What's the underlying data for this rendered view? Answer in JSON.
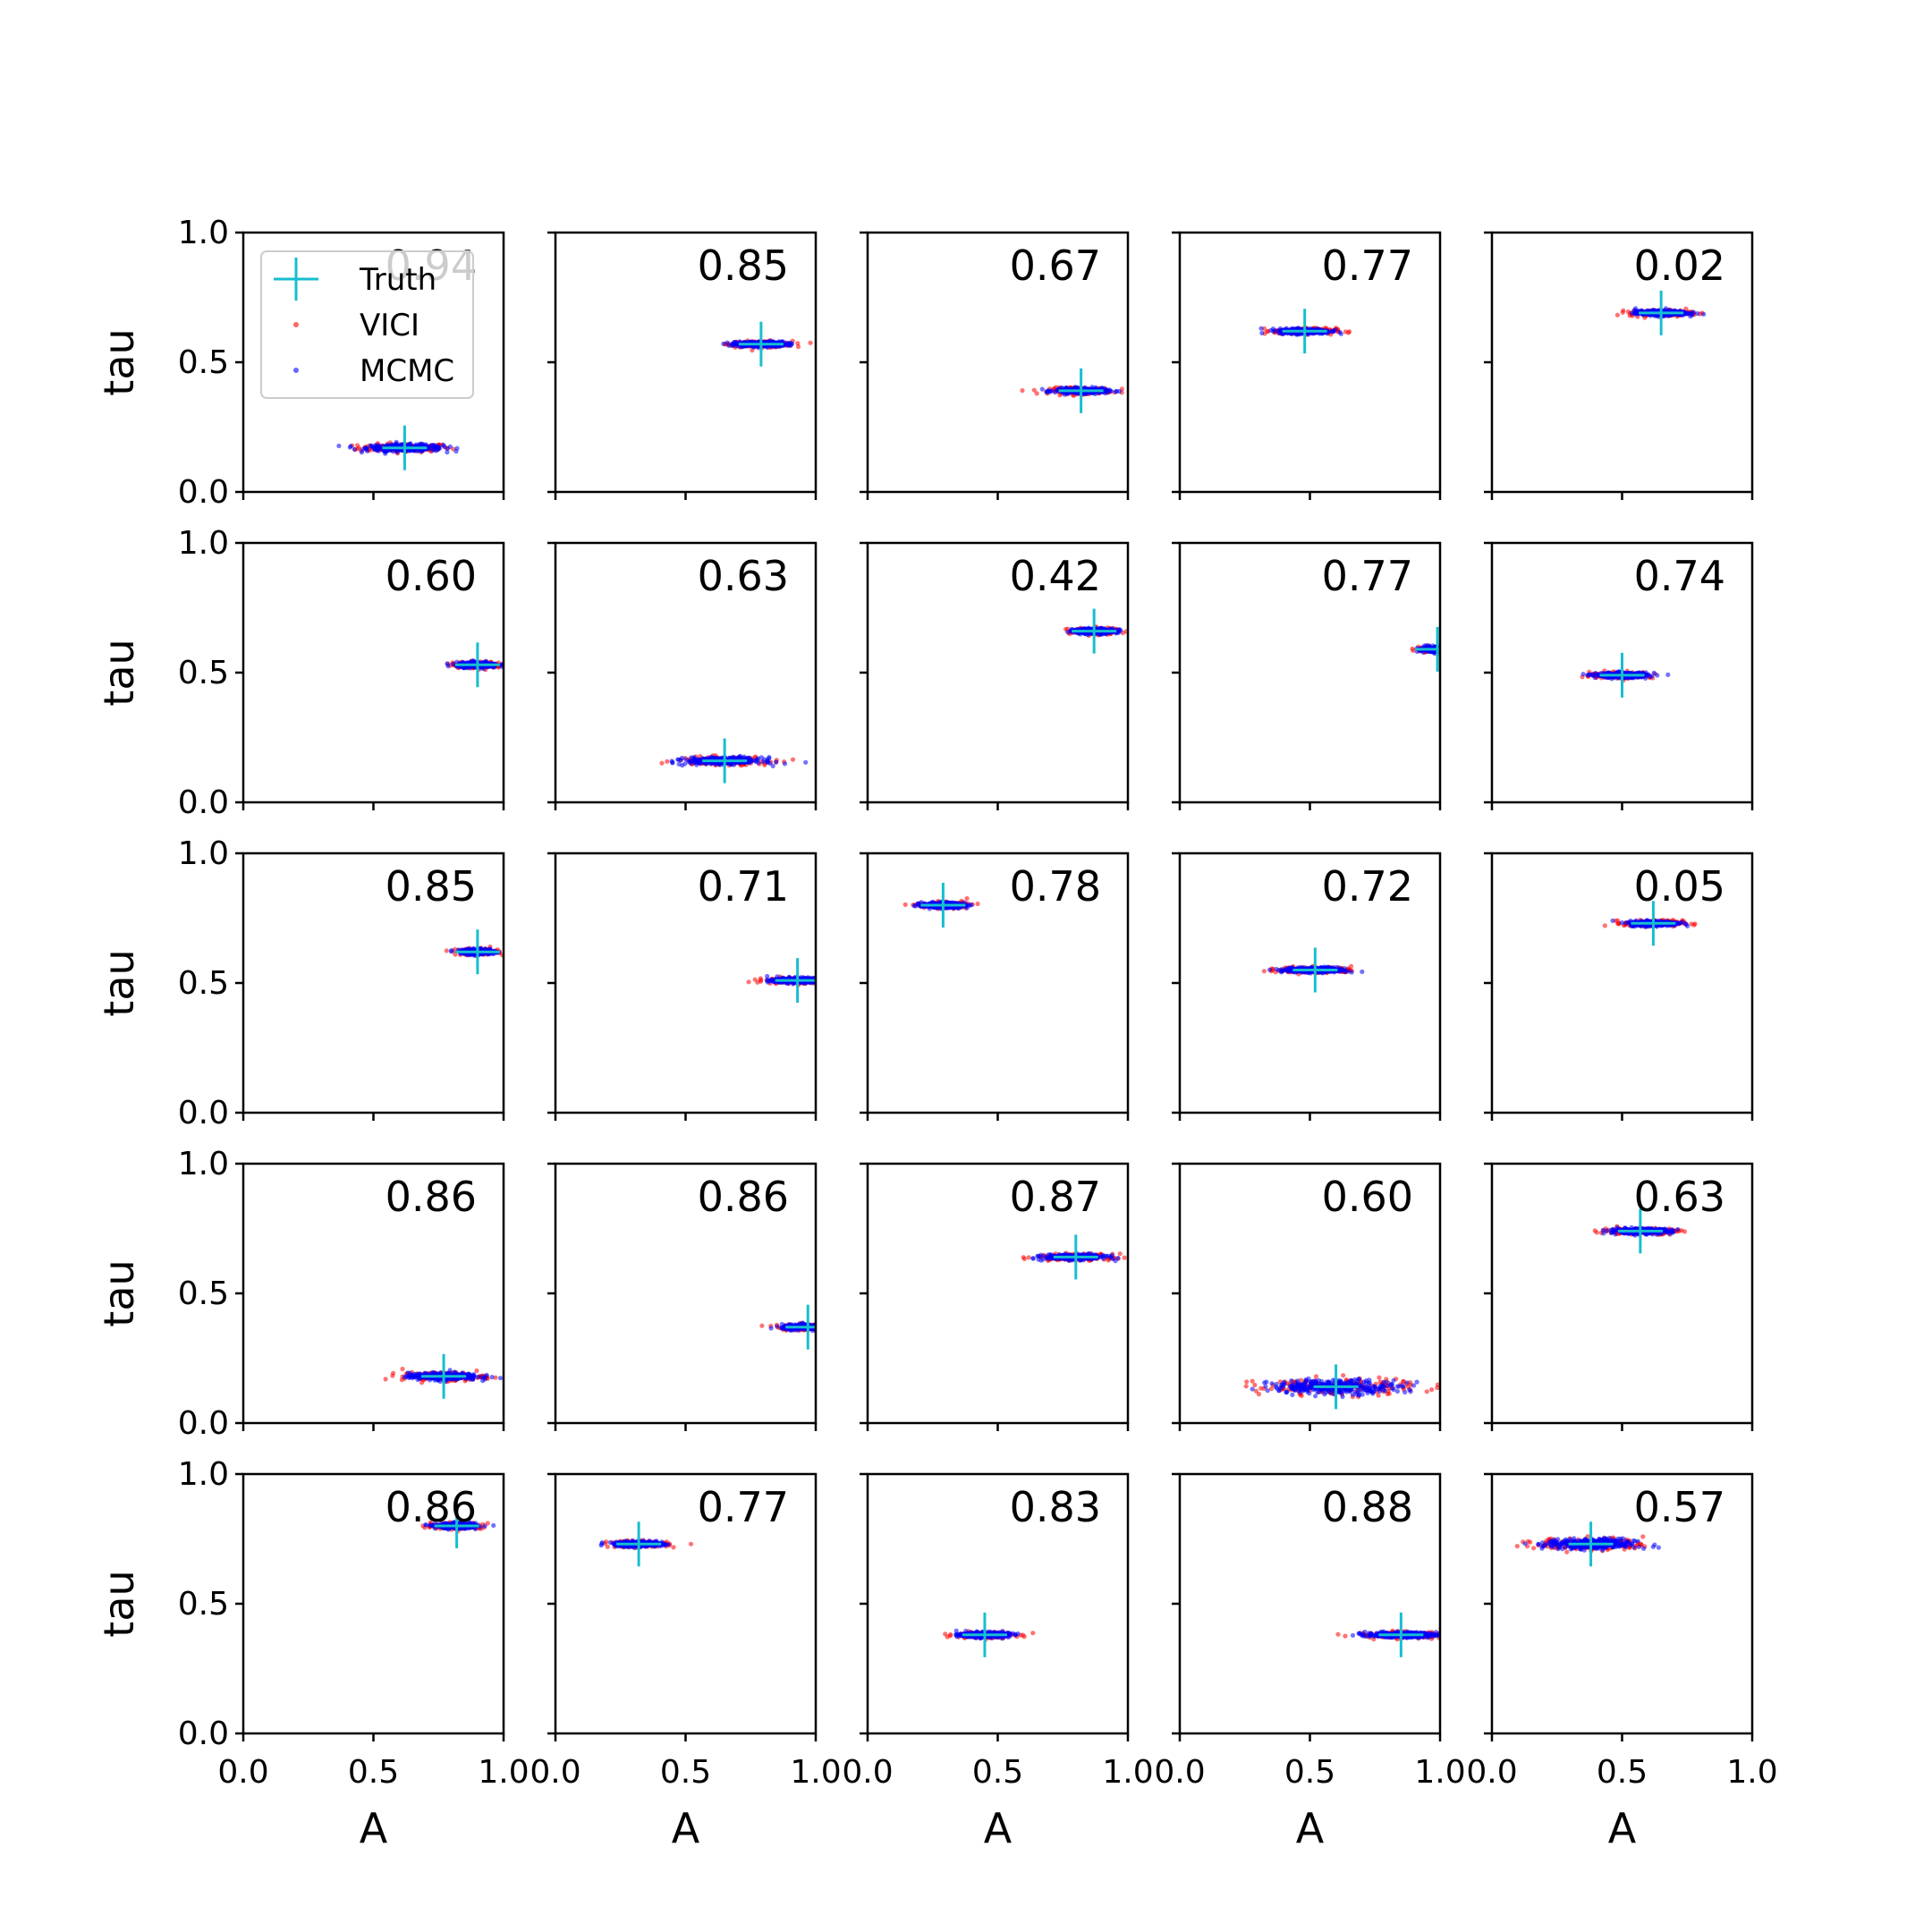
{
  "colors": {
    "truth": "#17becf",
    "vici": "#ff0000",
    "mcmc": "#0000ff",
    "axes": "#000000"
  },
  "legend": {
    "placement": "upper-left of first panel",
    "entries": [
      {
        "label": "Truth",
        "marker": "plus",
        "color": "#17becf"
      },
      {
        "label": "VICI",
        "marker": "dot",
        "color": "#ff0000"
      },
      {
        "label": "MCMC",
        "marker": "dot",
        "color": "#0000ff"
      }
    ]
  },
  "chart_data": {
    "type": "scatter",
    "layout": "5x5 grid of scatter panels with shared axes",
    "xlabel": "A",
    "ylabel": "tau",
    "xlim": [
      0,
      1
    ],
    "ylim": [
      0,
      1
    ],
    "xticks": [
      "0.0",
      "0.5",
      "1.0"
    ],
    "yticks": [
      "0.0",
      "0.5",
      "1.0"
    ],
    "grid": false,
    "panels": [
      {
        "value": "0.94",
        "truth": [
          0.62,
          0.17
        ],
        "spread": [
          0.22,
          0.02
        ]
      },
      {
        "value": "0.85",
        "truth": [
          0.79,
          0.57
        ],
        "spread": [
          0.15,
          0.015
        ]
      },
      {
        "value": "0.67",
        "truth": [
          0.82,
          0.39
        ],
        "spread": [
          0.15,
          0.015
        ]
      },
      {
        "value": "0.77",
        "truth": [
          0.48,
          0.62
        ],
        "spread": [
          0.15,
          0.015
        ]
      },
      {
        "value": "0.02",
        "truth": [
          0.65,
          0.69
        ],
        "spread": [
          0.15,
          0.015
        ]
      },
      {
        "value": "0.60",
        "truth": [
          0.9,
          0.53
        ],
        "spread": [
          0.12,
          0.015
        ]
      },
      {
        "value": "0.63",
        "truth": [
          0.65,
          0.16
        ],
        "spread": [
          0.22,
          0.02
        ]
      },
      {
        "value": "0.42",
        "truth": [
          0.87,
          0.66
        ],
        "spread": [
          0.12,
          0.015
        ]
      },
      {
        "value": "0.77",
        "truth": [
          0.99,
          0.59
        ],
        "spread": [
          0.1,
          0.015
        ]
      },
      {
        "value": "0.74",
        "truth": [
          0.5,
          0.49
        ],
        "spread": [
          0.15,
          0.015
        ]
      },
      {
        "value": "0.85",
        "truth": [
          0.9,
          0.62
        ],
        "spread": [
          0.1,
          0.015
        ]
      },
      {
        "value": "0.71",
        "truth": [
          0.93,
          0.51
        ],
        "spread": [
          0.15,
          0.015
        ]
      },
      {
        "value": "0.78",
        "truth": [
          0.29,
          0.8
        ],
        "spread": [
          0.12,
          0.015
        ]
      },
      {
        "value": "0.72",
        "truth": [
          0.52,
          0.55
        ],
        "spread": [
          0.18,
          0.015
        ]
      },
      {
        "value": "0.05",
        "truth": [
          0.62,
          0.73
        ],
        "spread": [
          0.14,
          0.015
        ]
      },
      {
        "value": "0.86",
        "truth": [
          0.77,
          0.18
        ],
        "spread": [
          0.2,
          0.02
        ]
      },
      {
        "value": "0.86",
        "truth": [
          0.97,
          0.37
        ],
        "spread": [
          0.15,
          0.015
        ]
      },
      {
        "value": "0.87",
        "truth": [
          0.8,
          0.64
        ],
        "spread": [
          0.18,
          0.015
        ]
      },
      {
        "value": "0.60",
        "truth": [
          0.6,
          0.14
        ],
        "spread": [
          0.38,
          0.04
        ]
      },
      {
        "value": "0.63",
        "truth": [
          0.57,
          0.74
        ],
        "spread": [
          0.18,
          0.015
        ]
      },
      {
        "value": "0.86",
        "truth": [
          0.82,
          0.8
        ],
        "spread": [
          0.12,
          0.015
        ]
      },
      {
        "value": "0.77",
        "truth": [
          0.32,
          0.73
        ],
        "spread": [
          0.14,
          0.015
        ]
      },
      {
        "value": "0.83",
        "truth": [
          0.45,
          0.38
        ],
        "spread": [
          0.14,
          0.015
        ]
      },
      {
        "value": "0.88",
        "truth": [
          0.85,
          0.38
        ],
        "spread": [
          0.2,
          0.015
        ]
      },
      {
        "value": "0.57",
        "truth": [
          0.38,
          0.73
        ],
        "spread": [
          0.26,
          0.03
        ]
      }
    ]
  }
}
